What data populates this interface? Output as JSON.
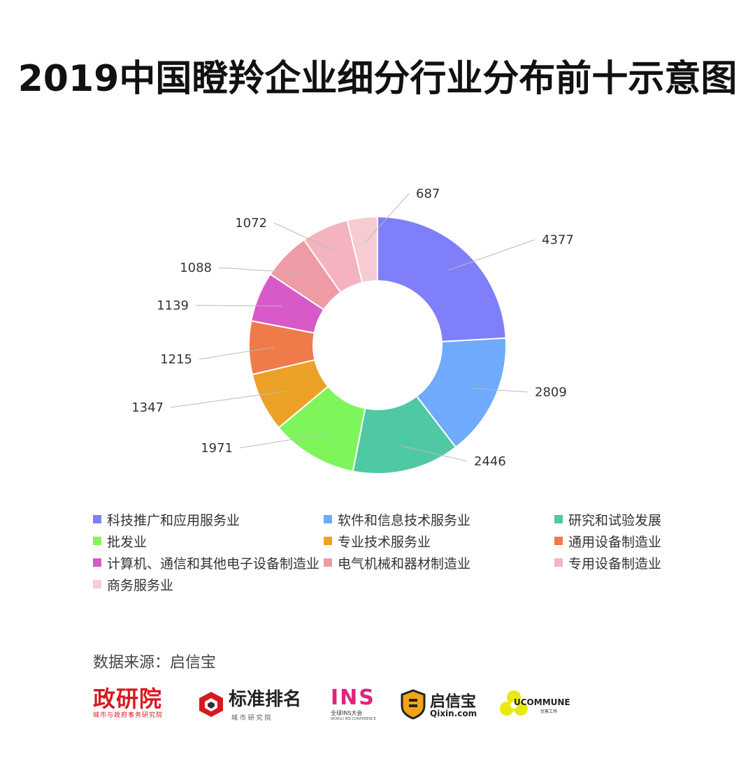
{
  "title": "2019中国瞪羚企业细分行业分布前十示意图",
  "chart_data": {
    "type": "pie",
    "variant": "donut",
    "title": "2019中国瞪羚企业细分行业分布前十示意图",
    "categories": [
      "科技推广和应用服务业",
      "软件和信息技术服务业",
      "研究和试验发展",
      "批发业",
      "专业技术服务业",
      "通用设备制造业",
      "计算机、通信和其他电子设备制造业",
      "电气机械和器材制造业",
      "专用设备制造业",
      "商务服务业"
    ],
    "values": [
      4377,
      2809,
      2446,
      1971,
      1347,
      1215,
      1139,
      1088,
      1072,
      687
    ],
    "value_labels": [
      "4377",
      "2809",
      "2446",
      "1971",
      "1347",
      "1215",
      "1139",
      "1088",
      "1072",
      "687"
    ],
    "colors": [
      "#7f7ffa",
      "#6faafc",
      "#4ec9a3",
      "#7ff55c",
      "#eca226",
      "#ef7b4a",
      "#d85ac9",
      "#ee9ba6",
      "#f4b3bf",
      "#f6cbd1"
    ],
    "legend_position": "bottom"
  },
  "source": "数据来源：启信宝",
  "logos": {
    "zhengyanyuan": {
      "name": "政研院",
      "sub": "城市与政府事务研究院"
    },
    "biaozhun": {
      "name": "标准排名",
      "sub": "城 市 研 究 院"
    },
    "ins": {
      "name": "INS",
      "sub": "全球INS大会",
      "sub2": "WORLD INS CONFERENCE"
    },
    "qixin": {
      "name": "启信宝",
      "sub": "Qixin.com"
    },
    "ucommune": {
      "name": "UCOMMUNE",
      "sub": "优客工场"
    }
  }
}
